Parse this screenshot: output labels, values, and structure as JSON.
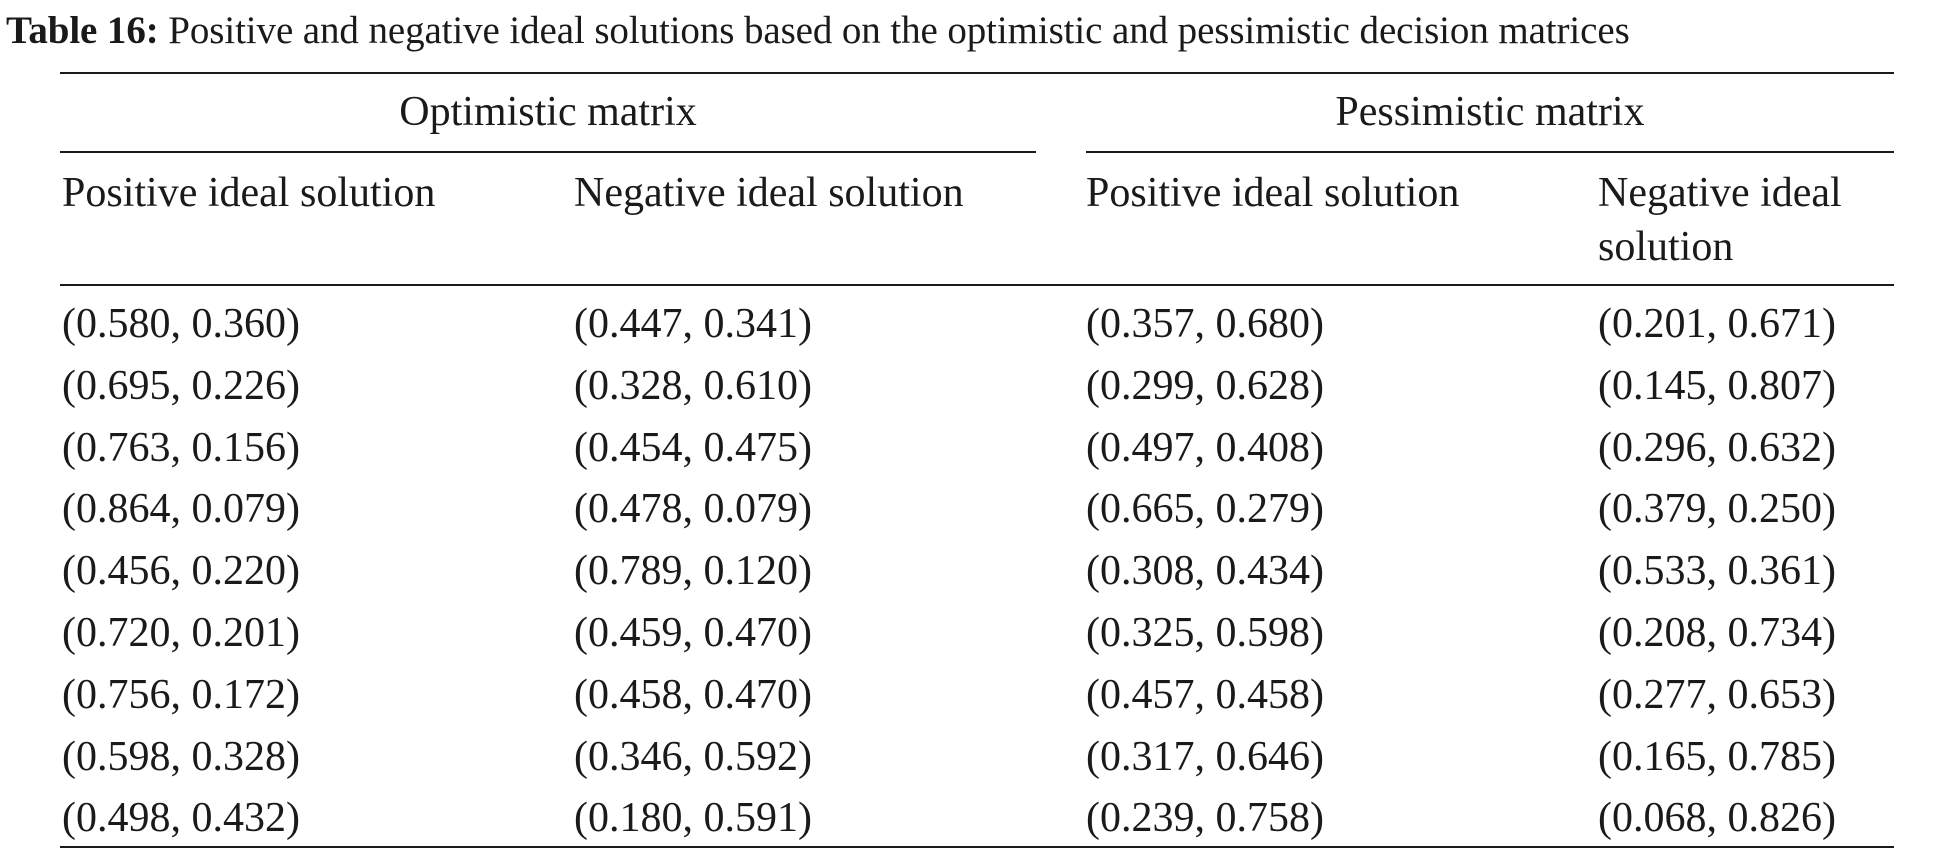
{
  "caption": {
    "label": "Table 16:",
    "text": "Positive and negative ideal solutions based on the optimistic and pessimistic decision matrices"
  },
  "groups": [
    "Optimistic matrix",
    "Pessimistic matrix"
  ],
  "columns": [
    "Positive ideal solution",
    "Negative ideal solution",
    "Positive ideal solution",
    "Negative ideal solution"
  ],
  "rows": [
    [
      "(0.580, 0.360)",
      "(0.447, 0.341)",
      "(0.357, 0.680)",
      "(0.201, 0.671)"
    ],
    [
      "(0.695, 0.226)",
      "(0.328, 0.610)",
      "(0.299, 0.628)",
      "(0.145, 0.807)"
    ],
    [
      "(0.763, 0.156)",
      "(0.454, 0.475)",
      "(0.497, 0.408)",
      "(0.296, 0.632)"
    ],
    [
      "(0.864, 0.079)",
      "(0.478, 0.079)",
      "(0.665, 0.279)",
      "(0.379, 0.250)"
    ],
    [
      "(0.456, 0.220)",
      "(0.789, 0.120)",
      "(0.308, 0.434)",
      "(0.533, 0.361)"
    ],
    [
      "(0.720, 0.201)",
      "(0.459, 0.470)",
      "(0.325, 0.598)",
      "(0.208, 0.734)"
    ],
    [
      "(0.756, 0.172)",
      "(0.458, 0.470)",
      "(0.457, 0.458)",
      "(0.277, 0.653)"
    ],
    [
      "(0.598, 0.328)",
      "(0.346, 0.592)",
      "(0.317, 0.646)",
      "(0.165, 0.785)"
    ],
    [
      "(0.498, 0.432)",
      "(0.180, 0.591)",
      "(0.239, 0.758)",
      "(0.068, 0.826)"
    ]
  ]
}
